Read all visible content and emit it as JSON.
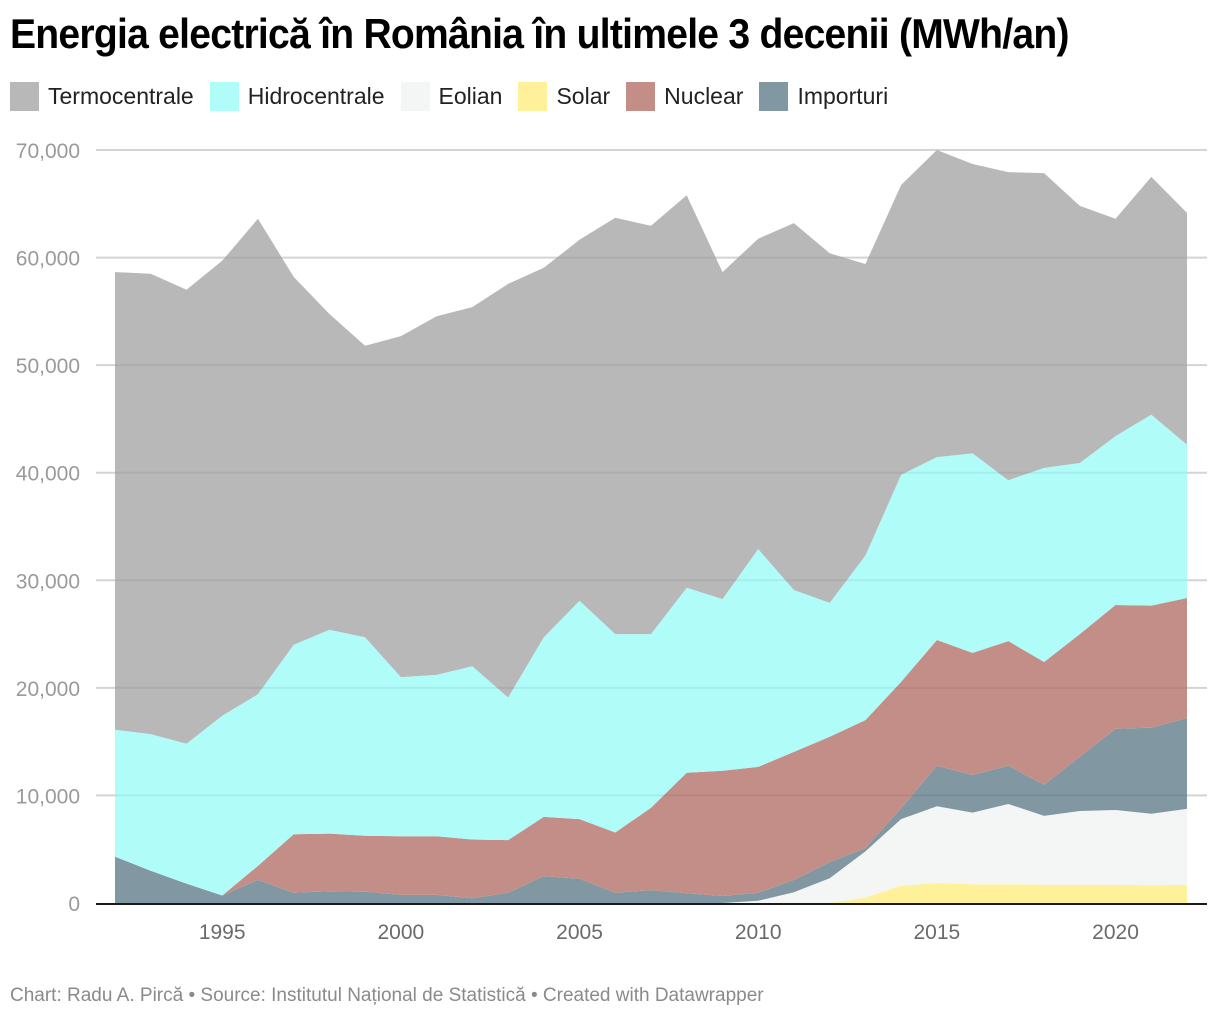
{
  "title": "Energia electrică în România în ultimele 3 decenii (MWh/an)",
  "footer": "Chart: Radu A. Pircă • Source: Institutul Național de Statistică • Created with Datawrapper",
  "legend": [
    {
      "label": "Termocentrale",
      "color": "#b8b8b8"
    },
    {
      "label": "Hidrocentrale",
      "color": "#b0fcf9"
    },
    {
      "label": "Eolian",
      "color": "#f4f6f5"
    },
    {
      "label": "Solar",
      "color": "#fff09a"
    },
    {
      "label": "Nuclear",
      "color": "#c48e88"
    },
    {
      "label": "Importuri",
      "color": "#8198a2"
    }
  ],
  "chart_data": {
    "type": "area",
    "stacked": true,
    "title": "Energia electrică în România în ultimele 3 decenii (MWh/an)",
    "xlabel": "",
    "ylabel": "",
    "x": [
      1992,
      1993,
      1994,
      1995,
      1996,
      1997,
      1998,
      1999,
      2000,
      2001,
      2002,
      2003,
      2004,
      2005,
      2006,
      2007,
      2008,
      2009,
      2010,
      2011,
      2012,
      2013,
      2014,
      2015,
      2016,
      2017,
      2018,
      2019,
      2020,
      2021,
      2022
    ],
    "xticks": [
      1995,
      2000,
      2005,
      2010,
      2015,
      2020
    ],
    "yticks": [
      0,
      10000,
      20000,
      30000,
      40000,
      50000,
      60000,
      70000
    ],
    "ytick_labels": [
      "0",
      "10,000",
      "20,000",
      "30,000",
      "40,000",
      "50,000",
      "60,000",
      "70,000"
    ],
    "ylim": [
      0,
      70000
    ],
    "grid": true,
    "legend_position": "top-left",
    "stack_order_bottom_to_top": [
      "Solar",
      "Eolian",
      "Importuri",
      "Nuclear",
      "Hidrocentrale",
      "Termocentrale"
    ],
    "series": [
      {
        "name": "Solar",
        "color": "#fff09a",
        "values": [
          0,
          0,
          0,
          0,
          0,
          0,
          0,
          0,
          0,
          0,
          0,
          0,
          0,
          0,
          0,
          0,
          0,
          0,
          0,
          0,
          0,
          500,
          1600,
          1850,
          1750,
          1750,
          1700,
          1700,
          1700,
          1650,
          1700
        ]
      },
      {
        "name": "Eolian",
        "color": "#f4f6f5",
        "values": [
          0,
          0,
          0,
          0,
          0,
          0,
          0,
          0,
          0,
          0,
          0,
          0,
          0,
          0,
          0,
          0,
          0,
          0,
          200,
          1000,
          2300,
          4300,
          6200,
          7150,
          6650,
          7450,
          6400,
          6850,
          6950,
          6650,
          7050
        ]
      },
      {
        "name": "Importuri",
        "color": "#8198a2",
        "values": [
          4300,
          3000,
          1800,
          700,
          2150,
          950,
          1100,
          1050,
          750,
          750,
          450,
          950,
          2500,
          2250,
          950,
          1200,
          900,
          650,
          750,
          1150,
          1500,
          300,
          1000,
          3750,
          3500,
          3550,
          2900,
          5050,
          7550,
          8000,
          8450
        ]
      },
      {
        "name": "Nuclear",
        "color": "#c48e88",
        "values": [
          0,
          0,
          0,
          0,
          1300,
          5450,
          5350,
          5200,
          5450,
          5450,
          5450,
          4900,
          5500,
          5550,
          5600,
          7650,
          11200,
          11650,
          11700,
          11900,
          11650,
          11900,
          11750,
          11700,
          11350,
          11600,
          11400,
          11400,
          11500,
          11350,
          11150
        ]
      },
      {
        "name": "Hidrocentrale",
        "color": "#b0fcf9",
        "values": [
          11800,
          12700,
          13000,
          16700,
          15950,
          17600,
          18950,
          18450,
          14800,
          15000,
          16100,
          13250,
          16700,
          20300,
          18450,
          16150,
          17200,
          15950,
          20250,
          15050,
          12450,
          15300,
          19250,
          17000,
          18550,
          14950,
          18050,
          15900,
          15700,
          17750,
          14250
        ]
      },
      {
        "name": "Termocentrale",
        "color": "#b8b8b8",
        "values": [
          42550,
          42800,
          42200,
          42300,
          44200,
          34200,
          29350,
          27100,
          31700,
          33350,
          33400,
          38450,
          34350,
          33550,
          38700,
          37950,
          36500,
          30400,
          28850,
          34100,
          32500,
          27100,
          26950,
          28550,
          26900,
          28650,
          27400,
          23900,
          20200,
          22100,
          21550
        ]
      }
    ]
  }
}
